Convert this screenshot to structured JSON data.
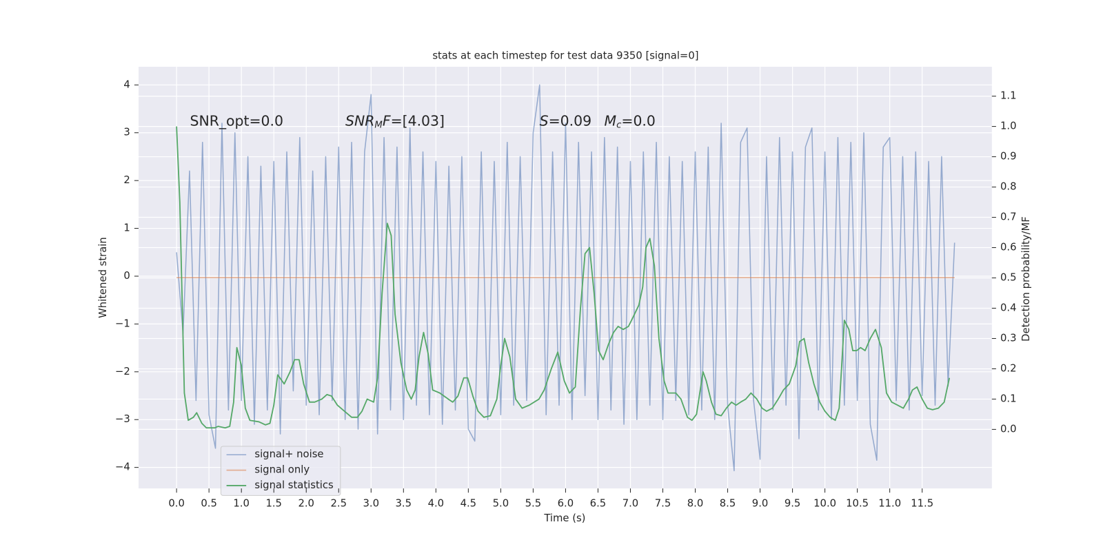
{
  "chart_data": {
    "type": "line",
    "title": "stats at each timestep for test data 9350 [signal=0]",
    "xlabel": "Time (s)",
    "ylabel": "Whitened strain",
    "y2label": "Detection probability/MF",
    "annotations": [
      [
        "SNR_opt=0.0"
      ],
      [
        "SNR",
        "M",
        "F",
        "=[4.03]"
      ],
      [
        "S",
        "=0.09",
        "M",
        "c",
        "=0.0"
      ]
    ],
    "xlim": [
      -0.586,
      12.575
    ],
    "ylim": [
      -4.44,
      4.38
    ],
    "y2lim": [
      -0.195,
      1.197
    ],
    "xticks": [
      {
        "value": 0,
        "label": "0.0"
      },
      0.5,
      {
        "value": 1,
        "label": "1.0"
      },
      1.5,
      {
        "value": 2,
        "label": "2.0"
      },
      2.5,
      {
        "value": 3,
        "label": "3.0"
      },
      3.5,
      {
        "value": 4,
        "label": "4.0"
      },
      4.5,
      {
        "value": 5,
        "label": "5.0"
      },
      5.5,
      {
        "value": 6,
        "label": "6.0"
      },
      6.5,
      {
        "value": 7,
        "label": "7.0"
      },
      7.5,
      {
        "value": 8,
        "label": "8.0"
      },
      8.5,
      {
        "value": 9,
        "label": "9.0"
      },
      9.5,
      {
        "value": 10,
        "label": "10.0"
      },
      10.5,
      {
        "value": 11,
        "label": "11.0"
      },
      11.5
    ],
    "yticks": [
      {
        "value": -4,
        "label": "−4"
      },
      {
        "value": -3,
        "label": "−3"
      },
      {
        "value": -2,
        "label": "−2"
      },
      {
        "value": -1,
        "label": "−1"
      },
      0,
      1,
      2,
      3,
      4
    ],
    "y2ticks": [
      {
        "value": 0,
        "label": "0.0"
      },
      0.1,
      0.2,
      0.3,
      0.4,
      0.5,
      0.6,
      0.7,
      0.8,
      0.9,
      {
        "value": 1,
        "label": "1.0"
      },
      1.1
    ],
    "grid": true,
    "legend": "lower left",
    "series": [
      {
        "name": "signal+ noise",
        "color": "#4c72b0",
        "x": [
          0,
          0.1,
          0.2,
          0.3,
          0.4,
          0.5,
          0.6,
          0.7,
          0.8,
          0.9,
          1,
          1.1,
          1.2,
          1.3,
          1.4,
          1.5,
          1.6,
          1.7,
          1.8,
          1.9,
          2,
          2.1,
          2.2,
          2.3,
          2.4,
          2.5,
          2.6,
          2.7,
          2.8,
          2.9,
          3,
          3.1,
          3.2,
          3.3,
          3.4,
          3.5,
          3.6,
          3.7,
          3.8,
          3.9,
          4,
          4.1,
          4.2,
          4.3,
          4.4,
          4.5,
          4.6,
          4.7,
          4.8,
          4.9,
          5,
          5.1,
          5.2,
          5.3,
          5.4,
          5.5,
          5.6,
          5.7,
          5.8,
          5.9,
          6,
          6.1,
          6.2,
          6.3,
          6.4,
          6.5,
          6.6,
          6.7,
          6.8,
          6.9,
          7,
          7.1,
          7.2,
          7.3,
          7.4,
          7.5,
          7.6,
          7.7,
          7.8,
          7.9,
          8,
          8.1,
          8.2,
          8.3,
          8.4,
          8.5,
          8.6,
          8.7,
          8.8,
          8.9,
          9,
          9.1,
          9.2,
          9.3,
          9.4,
          9.5,
          9.6,
          9.7,
          9.8,
          9.9,
          10,
          10.1,
          10.2,
          10.3,
          10.4,
          10.5,
          10.6,
          10.7,
          10.8,
          10.9,
          11,
          11.1,
          11.2,
          11.3,
          11.4,
          11.5,
          11.6,
          11.7,
          11.8,
          11.9,
          12
        ],
        "values": [
          0.5,
          -1.2,
          2.2,
          -2.6,
          2.8,
          -2.9,
          -3.6,
          3.2,
          -2.8,
          3.0,
          -2.6,
          2.5,
          -3.1,
          2.3,
          -2.8,
          2.4,
          -3.3,
          2.6,
          -2.4,
          2.9,
          -2.7,
          2.2,
          -2.9,
          2.5,
          -2.6,
          2.7,
          -3.0,
          2.8,
          -3.2,
          2.6,
          3.8,
          -3.3,
          2.9,
          -2.8,
          2.7,
          -3.0,
          3.1,
          -2.7,
          2.6,
          -2.9,
          2.4,
          -3.1,
          2.3,
          -2.8,
          2.5,
          -3.2,
          -3.45,
          2.6,
          -3.0,
          2.4,
          -2.9,
          2.8,
          -2.7,
          2.5,
          -2.6,
          3.0,
          4.0,
          -2.9,
          2.6,
          -2.7,
          3.2,
          -3.0,
          2.8,
          -2.5,
          2.6,
          -3.0,
          2.9,
          -2.8,
          2.7,
          -3.1,
          2.4,
          -3.0,
          2.6,
          -2.7,
          2.8,
          -3.0,
          2.5,
          -2.6,
          2.4,
          -2.9,
          2.6,
          -2.8,
          2.7,
          -3.0,
          3.2,
          -2.7,
          -4.07,
          2.8,
          3.1,
          -2.6,
          -3.83,
          2.5,
          -2.8,
          2.9,
          -2.7,
          2.6,
          -3.4,
          2.7,
          3.1,
          -2.8,
          2.6,
          -3.0,
          2.9,
          -2.7,
          2.8,
          -2.6,
          3.0,
          -3.1,
          -3.85,
          2.7,
          2.9,
          -2.6,
          2.5,
          -2.8,
          2.6,
          -2.5,
          2.4,
          -2.7,
          2.5,
          -2.3,
          0.7
        ]
      },
      {
        "name": "signal only",
        "color": "#dd8452",
        "x": [
          0,
          12
        ],
        "values": [
          -0.03,
          -0.03
        ]
      },
      {
        "name": "signal statistics",
        "color": "#55a868",
        "axis": "y2",
        "x": [
          0,
          0.05,
          0.12,
          0.18,
          0.26,
          0.31,
          0.39,
          0.46,
          0.59,
          0.64,
          0.75,
          0.82,
          0.88,
          0.93,
          1.0,
          1.06,
          1.13,
          1.27,
          1.37,
          1.44,
          1.5,
          1.56,
          1.66,
          1.75,
          1.82,
          1.89,
          1.96,
          2.05,
          2.13,
          2.24,
          2.32,
          2.39,
          2.48,
          2.59,
          2.7,
          2.79,
          2.86,
          2.94,
          3.04,
          3.1,
          3.17,
          3.25,
          3.31,
          3.37,
          3.46,
          3.55,
          3.62,
          3.68,
          3.74,
          3.81,
          3.88,
          3.95,
          4.06,
          4.19,
          4.26,
          4.34,
          4.43,
          4.49,
          4.57,
          4.65,
          4.74,
          4.84,
          4.94,
          5.0,
          5.06,
          5.14,
          5.23,
          5.33,
          5.44,
          5.59,
          5.67,
          5.78,
          5.88,
          5.98,
          6.06,
          6.15,
          6.23,
          6.3,
          6.37,
          6.44,
          6.51,
          6.58,
          6.66,
          6.74,
          6.81,
          6.89,
          6.97,
          7.04,
          7.13,
          7.19,
          7.24,
          7.3,
          7.37,
          7.44,
          7.52,
          7.58,
          7.7,
          7.78,
          7.88,
          7.95,
          8.02,
          8.12,
          8.17,
          8.25,
          8.32,
          8.4,
          8.48,
          8.56,
          8.63,
          8.7,
          8.78,
          8.86,
          8.95,
          9.03,
          9.1,
          9.19,
          9.28,
          9.36,
          9.45,
          9.55,
          9.61,
          9.68,
          9.75,
          9.83,
          9.92,
          10.0,
          10.08,
          10.16,
          10.22,
          10.3,
          10.37,
          10.43,
          10.49,
          10.55,
          10.62,
          10.7,
          10.78,
          10.87,
          10.95,
          11.03,
          11.12,
          11.21,
          11.29,
          11.35,
          11.42,
          11.5,
          11.58,
          11.66,
          11.75,
          11.84,
          11.92
        ],
        "values": [
          1.0,
          0.75,
          0.12,
          0.03,
          0.04,
          0.055,
          0.02,
          0.005,
          0.005,
          0.01,
          0.005,
          0.01,
          0.09,
          0.27,
          0.21,
          0.07,
          0.03,
          0.025,
          0.015,
          0.02,
          0.08,
          0.18,
          0.15,
          0.19,
          0.23,
          0.23,
          0.15,
          0.09,
          0.09,
          0.1,
          0.115,
          0.11,
          0.08,
          0.06,
          0.04,
          0.04,
          0.06,
          0.1,
          0.09,
          0.17,
          0.45,
          0.68,
          0.64,
          0.38,
          0.22,
          0.13,
          0.1,
          0.13,
          0.24,
          0.32,
          0.25,
          0.13,
          0.12,
          0.1,
          0.09,
          0.11,
          0.17,
          0.17,
          0.11,
          0.06,
          0.04,
          0.045,
          0.1,
          0.21,
          0.3,
          0.24,
          0.1,
          0.07,
          0.08,
          0.1,
          0.13,
          0.2,
          0.255,
          0.16,
          0.12,
          0.14,
          0.4,
          0.58,
          0.6,
          0.45,
          0.26,
          0.23,
          0.28,
          0.32,
          0.34,
          0.33,
          0.34,
          0.37,
          0.41,
          0.47,
          0.6,
          0.63,
          0.54,
          0.3,
          0.16,
          0.12,
          0.12,
          0.1,
          0.04,
          0.03,
          0.05,
          0.19,
          0.16,
          0.09,
          0.05,
          0.045,
          0.07,
          0.09,
          0.08,
          0.09,
          0.1,
          0.12,
          0.1,
          0.07,
          0.06,
          0.07,
          0.1,
          0.13,
          0.15,
          0.21,
          0.29,
          0.3,
          0.22,
          0.15,
          0.09,
          0.06,
          0.04,
          0.03,
          0.07,
          0.36,
          0.33,
          0.26,
          0.26,
          0.27,
          0.26,
          0.3,
          0.33,
          0.27,
          0.12,
          0.09,
          0.08,
          0.07,
          0.1,
          0.13,
          0.14,
          0.1,
          0.07,
          0.065,
          0.07,
          0.09,
          0.17
        ]
      }
    ]
  }
}
